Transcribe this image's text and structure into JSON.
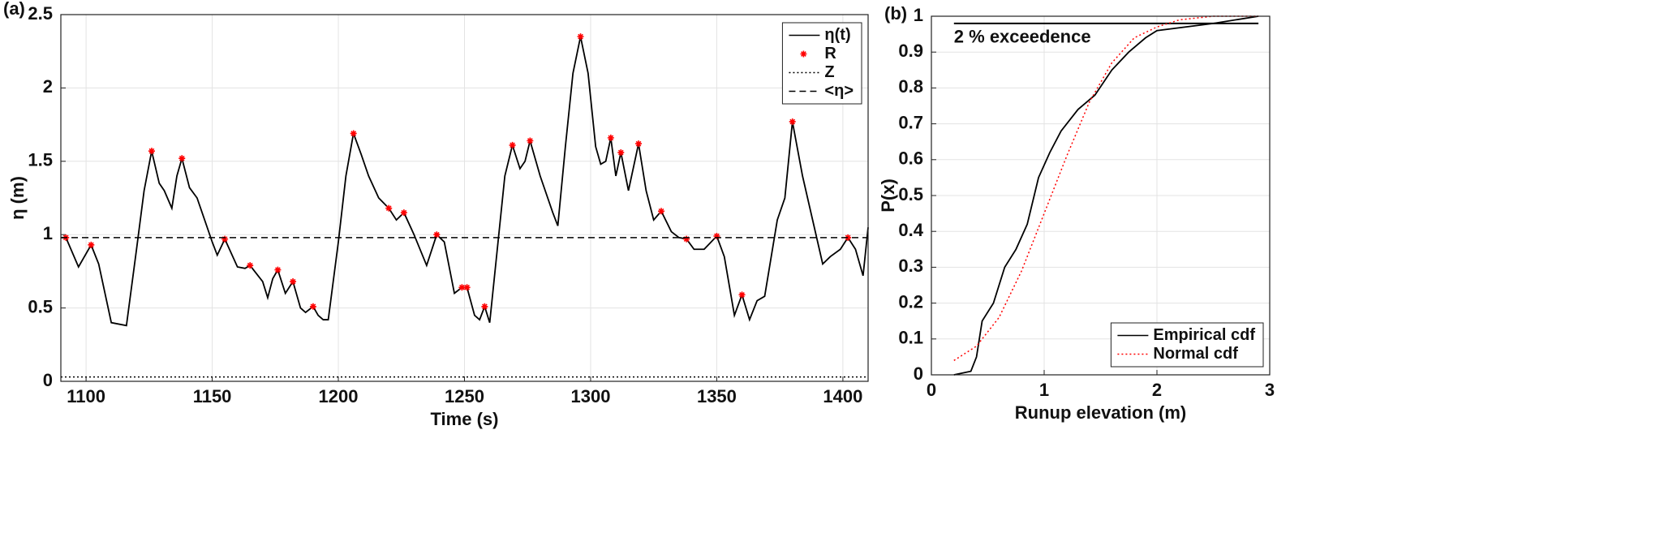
{
  "chart_data": [
    {
      "type": "line",
      "panel_label": "(a)",
      "xlabel": "Time (s)",
      "ylabel": "η (m)",
      "xlim": [
        1090,
        1410
      ],
      "ylim": [
        0,
        2.5
      ],
      "xticks": [
        1100,
        1150,
        1200,
        1250,
        1300,
        1350,
        1400
      ],
      "yticks": [
        0,
        0.5,
        1,
        1.5,
        2,
        2.5
      ],
      "grid": true,
      "legend": "top-right",
      "series": [
        {
          "name": "η(t)",
          "color": "#000000",
          "linestyle": "solid",
          "x": [
            1090,
            1092,
            1097,
            1102,
            1105,
            1110,
            1116,
            1120,
            1123,
            1126,
            1129,
            1131,
            1134,
            1136,
            1138,
            1141,
            1144,
            1150,
            1152,
            1155,
            1160,
            1163,
            1165,
            1170,
            1172,
            1174,
            1176,
            1179,
            1182,
            1185,
            1187,
            1190,
            1192,
            1194,
            1196,
            1200,
            1203,
            1206,
            1209,
            1212,
            1216,
            1220,
            1223,
            1226,
            1230,
            1235,
            1239,
            1242,
            1246,
            1249,
            1251,
            1254,
            1256,
            1258,
            1260,
            1263,
            1266,
            1269,
            1272,
            1274,
            1276,
            1280,
            1285,
            1287,
            1290,
            1293,
            1296,
            1299,
            1302,
            1304,
            1306,
            1308,
            1310,
            1312,
            1315,
            1319,
            1322,
            1325,
            1328,
            1332,
            1335,
            1338,
            1341,
            1345,
            1350,
            1353,
            1357,
            1360,
            1363,
            1366,
            1369,
            1374,
            1377,
            1380,
            1384,
            1388,
            1392,
            1395,
            1399,
            1402,
            1405,
            1408,
            1410
          ],
          "values": [
            0.98,
            0.98,
            0.78,
            0.93,
            0.8,
            0.4,
            0.38,
            0.9,
            1.3,
            1.57,
            1.35,
            1.3,
            1.18,
            1.4,
            1.52,
            1.32,
            1.25,
            0.95,
            0.86,
            0.97,
            0.78,
            0.77,
            0.79,
            0.68,
            0.57,
            0.7,
            0.76,
            0.6,
            0.68,
            0.5,
            0.47,
            0.51,
            0.45,
            0.42,
            0.42,
            0.95,
            1.4,
            1.69,
            1.55,
            1.4,
            1.25,
            1.18,
            1.1,
            1.15,
            1.0,
            0.79,
            1.0,
            0.95,
            0.6,
            0.64,
            0.64,
            0.45,
            0.42,
            0.51,
            0.4,
            0.9,
            1.4,
            1.61,
            1.45,
            1.5,
            1.64,
            1.4,
            1.15,
            1.06,
            1.6,
            2.1,
            2.35,
            2.1,
            1.6,
            1.48,
            1.5,
            1.66,
            1.4,
            1.56,
            1.3,
            1.62,
            1.3,
            1.1,
            1.16,
            1.02,
            0.98,
            0.97,
            0.9,
            0.9,
            0.99,
            0.85,
            0.45,
            0.59,
            0.42,
            0.55,
            0.58,
            1.1,
            1.25,
            1.77,
            1.4,
            1.1,
            0.8,
            0.85,
            0.9,
            0.98,
            0.9,
            0.72,
            1.05
          ]
        },
        {
          "name": "R",
          "color": "#ff0000",
          "marker": "*",
          "x": [
            1092,
            1102,
            1126,
            1138,
            1155,
            1165,
            1176,
            1182,
            1190,
            1206,
            1220,
            1226,
            1239,
            1249,
            1251,
            1258,
            1269,
            1276,
            1296,
            1308,
            1312,
            1319,
            1328,
            1338,
            1350,
            1360,
            1380,
            1402
          ],
          "values": [
            0.98,
            0.93,
            1.57,
            1.52,
            0.97,
            0.79,
            0.76,
            0.68,
            0.51,
            1.69,
            1.18,
            1.15,
            1.0,
            0.64,
            0.64,
            0.51,
            1.61,
            1.64,
            2.35,
            1.66,
            1.56,
            1.62,
            1.16,
            0.97,
            0.99,
            0.59,
            1.77,
            0.98
          ]
        },
        {
          "name": "Z",
          "color": "#000000",
          "linestyle": "dotted",
          "x": [
            1090,
            1410
          ],
          "values": [
            0.03,
            0.03
          ]
        },
        {
          "name": "<η>",
          "color": "#000000",
          "linestyle": "dashed",
          "x": [
            1090,
            1410
          ],
          "values": [
            0.98,
            0.98
          ]
        }
      ]
    },
    {
      "type": "line",
      "panel_label": "(b)",
      "xlabel": "Runup elevation (m)",
      "ylabel": "P(x)",
      "xlim": [
        0,
        3
      ],
      "ylim": [
        0,
        1
      ],
      "xticks": [
        0,
        1,
        2,
        3
      ],
      "yticks": [
        0,
        0.1,
        0.2,
        0.3,
        0.4,
        0.5,
        0.6,
        0.7,
        0.8,
        0.9,
        1
      ],
      "grid": true,
      "legend": "bottom-right",
      "annotation": {
        "text": "2 % exceedence",
        "y": 0.98,
        "xrange": [
          0.2,
          2.9
        ]
      },
      "series": [
        {
          "name": "Empirical cdf",
          "color": "#000000",
          "linestyle": "solid",
          "x": [
            0.2,
            0.35,
            0.4,
            0.45,
            0.55,
            0.65,
            0.75,
            0.85,
            0.95,
            1.05,
            1.15,
            1.3,
            1.45,
            1.6,
            1.75,
            1.9,
            2.0,
            2.5,
            2.9
          ],
          "values": [
            0,
            0.01,
            0.05,
            0.15,
            0.2,
            0.3,
            0.35,
            0.42,
            0.55,
            0.62,
            0.68,
            0.74,
            0.78,
            0.85,
            0.9,
            0.94,
            0.96,
            0.98,
            1.0
          ]
        },
        {
          "name": "Normal cdf",
          "color": "#ff0000",
          "linestyle": "dotted",
          "x": [
            0.2,
            0.4,
            0.6,
            0.8,
            1.0,
            1.2,
            1.4,
            1.6,
            1.8,
            2.0,
            2.2,
            2.5,
            2.9
          ],
          "values": [
            0.04,
            0.08,
            0.16,
            0.29,
            0.45,
            0.61,
            0.76,
            0.87,
            0.94,
            0.97,
            0.99,
            1.0,
            1.0
          ]
        }
      ]
    }
  ]
}
